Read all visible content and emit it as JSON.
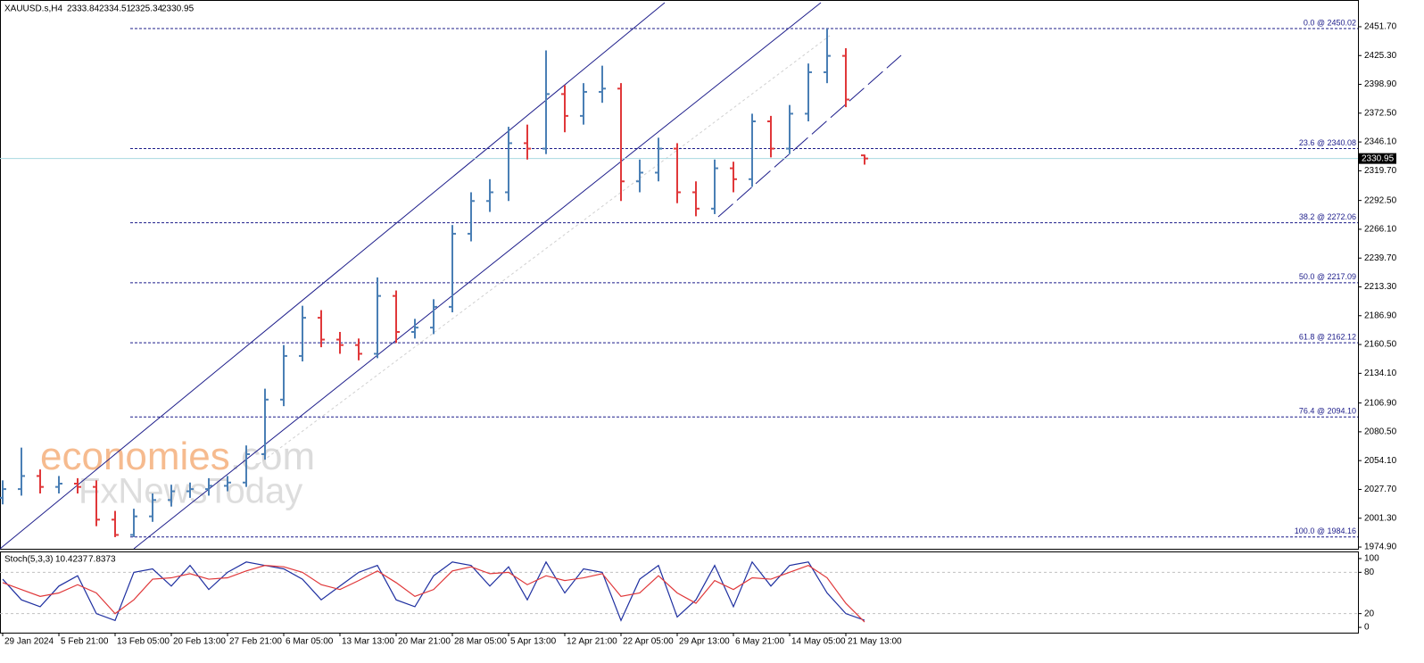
{
  "chart_data": [
    {
      "type": "ohlc",
      "title": "XAUUSD.s,H4",
      "categories": [
        "29 Jan 2024",
        null,
        null,
        "5 Feb 21:00",
        null,
        null,
        "13 Feb 05:00",
        null,
        null,
        "20 Feb 13:00",
        null,
        null,
        "27 Feb 21:00",
        null,
        null,
        "6 Mar 05:00",
        null,
        null,
        "13 Mar 13:00",
        null,
        null,
        "20 Mar 21:00",
        null,
        null,
        "28 Mar 05:00",
        null,
        null,
        "5 Apr 13:00",
        null,
        null,
        "12 Apr 21:00",
        null,
        null,
        "22 Apr 05:00",
        null,
        null,
        "29 Apr 13:00",
        null,
        null,
        "6 May 21:00",
        null,
        null,
        "14 May 05:00",
        null,
        null,
        "21 May 13:00",
        null
      ],
      "open": [
        2020,
        2028,
        2040,
        2030,
        2033,
        2030,
        2000,
        1986,
        2003,
        2018,
        2026,
        2028,
        2031,
        2034,
        2060,
        2110,
        2150,
        2185,
        2165,
        2160,
        2152,
        2205,
        2172,
        2176,
        2195,
        2262,
        2292,
        2300,
        2345,
        2340,
        2390,
        2370,
        2392,
        2395,
        2310,
        2318,
        2340,
        2300,
        2285,
        2322,
        2312,
        2365,
        2340,
        2372,
        2410,
        2425,
        2333.84
      ],
      "high": [
        2036,
        2066,
        2046,
        2040,
        2038,
        2036,
        2008,
        2010,
        2024,
        2032,
        2034,
        2038,
        2040,
        2068,
        2120,
        2160,
        2196,
        2192,
        2172,
        2166,
        2222,
        2210,
        2184,
        2202,
        2270,
        2300,
        2312,
        2360,
        2362,
        2430,
        2398,
        2400,
        2416,
        2400,
        2330,
        2350,
        2345,
        2310,
        2330,
        2328,
        2372,
        2370,
        2380,
        2418,
        2450,
        2432,
        2334.51
      ],
      "low": [
        2014,
        2022,
        2024,
        2024,
        2024,
        1994,
        1984,
        1984,
        1998,
        2012,
        2020,
        2022,
        2026,
        2030,
        2055,
        2104,
        2145,
        2158,
        2152,
        2146,
        2148,
        2162,
        2166,
        2170,
        2190,
        2255,
        2282,
        2292,
        2330,
        2335,
        2355,
        2362,
        2382,
        2292,
        2300,
        2310,
        2290,
        2278,
        2280,
        2300,
        2305,
        2332,
        2335,
        2365,
        2400,
        2378,
        2325.34
      ],
      "close": [
        2028,
        2040,
        2030,
        2033,
        2030,
        2000,
        1986,
        2003,
        2018,
        2026,
        2028,
        2031,
        2034,
        2060,
        2110,
        2150,
        2185,
        2165,
        2160,
        2152,
        2205,
        2172,
        2176,
        2195,
        2262,
        2292,
        2300,
        2345,
        2340,
        2390,
        2370,
        2392,
        2395,
        2310,
        2318,
        2340,
        2300,
        2285,
        2322,
        2312,
        2365,
        2340,
        2372,
        2410,
        2425,
        2385,
        2330.95
      ],
      "up_color": "#4a7fb5",
      "down_color": "#e0383a",
      "ylim": [
        1973.3,
        2476.2
      ],
      "yticks": [
        {
          "value": 2451.7,
          "label": "2451.70"
        },
        {
          "value": 2425.3,
          "label": "2425.30"
        },
        {
          "value": 2398.9,
          "label": "2398.90"
        },
        {
          "value": 2372.5,
          "label": "2372.50"
        },
        {
          "value": 2346.1,
          "label": "2346.10"
        },
        {
          "value": 2319.7,
          "label": "2319.70"
        },
        {
          "value": 2292.5,
          "label": "2292.50"
        },
        {
          "value": 2266.1,
          "label": "2266.10"
        },
        {
          "value": 2239.7,
          "label": "2239.70"
        },
        {
          "value": 2213.3,
          "label": "2213.30"
        },
        {
          "value": 2186.9,
          "label": "2186.90"
        },
        {
          "value": 2160.5,
          "label": "2160.50"
        },
        {
          "value": 2134.1,
          "label": "2134.10"
        },
        {
          "value": 2106.9,
          "label": "2106.90"
        },
        {
          "value": 2080.5,
          "label": "2080.50"
        },
        {
          "value": 2054.1,
          "label": "2054.10"
        },
        {
          "value": 2027.7,
          "label": "2027.70"
        },
        {
          "value": 2001.3,
          "label": "2001.30"
        },
        {
          "value": 1974.9,
          "label": "1974.90"
        }
      ],
      "levels": [
        {
          "value": 2450.02,
          "label": "0.0 @ 2450.02"
        },
        {
          "value": 2340.08,
          "label": "23.6 @ 2340.08"
        },
        {
          "value": 2272.06,
          "label": "38.2 @ 2272.06"
        },
        {
          "value": 2217.09,
          "label": "50.0 @ 2217.09"
        },
        {
          "value": 2162.12,
          "label": "61.8 @ 2162.12"
        },
        {
          "value": 2094.1,
          "label": "76.4 @ 2094.10"
        },
        {
          "value": 1984.16,
          "label": "100.0 @ 1984.16"
        }
      ],
      "level_color": "#1c1c8a",
      "current_price_color": "#a8d8e0"
    },
    {
      "type": "line",
      "title": "Stoch(5,3,3)",
      "series": [
        {
          "color": "#1e2fa0",
          "values": [
            70,
            40,
            30,
            60,
            75,
            20,
            10,
            80,
            85,
            60,
            90,
            55,
            80,
            95,
            90,
            85,
            70,
            40,
            60,
            80,
            90,
            40,
            30,
            75,
            95,
            90,
            60,
            88,
            40,
            95,
            50,
            85,
            80,
            10,
            70,
            90,
            15,
            40,
            90,
            30,
            95,
            60,
            90,
            95,
            50,
            20,
            10.4237
          ]
        },
        {
          "color": "#e0383a",
          "values": [
            65,
            55,
            45,
            50,
            62,
            50,
            20,
            40,
            70,
            72,
            78,
            70,
            72,
            82,
            90,
            88,
            80,
            62,
            55,
            68,
            82,
            65,
            45,
            55,
            82,
            88,
            78,
            80,
            62,
            75,
            68,
            72,
            78,
            45,
            50,
            75,
            50,
            35,
            68,
            55,
            72,
            70,
            80,
            90,
            72,
            35,
            7.8373
          ]
        }
      ],
      "ylim": [
        -7.7,
        109
      ],
      "yticks": [
        100,
        80,
        20,
        0
      ],
      "levels": [
        80,
        20
      ]
    }
  ],
  "watermark": {
    "brand": "economies",
    "domain": ".com",
    "line2": "FxNewsToday"
  }
}
